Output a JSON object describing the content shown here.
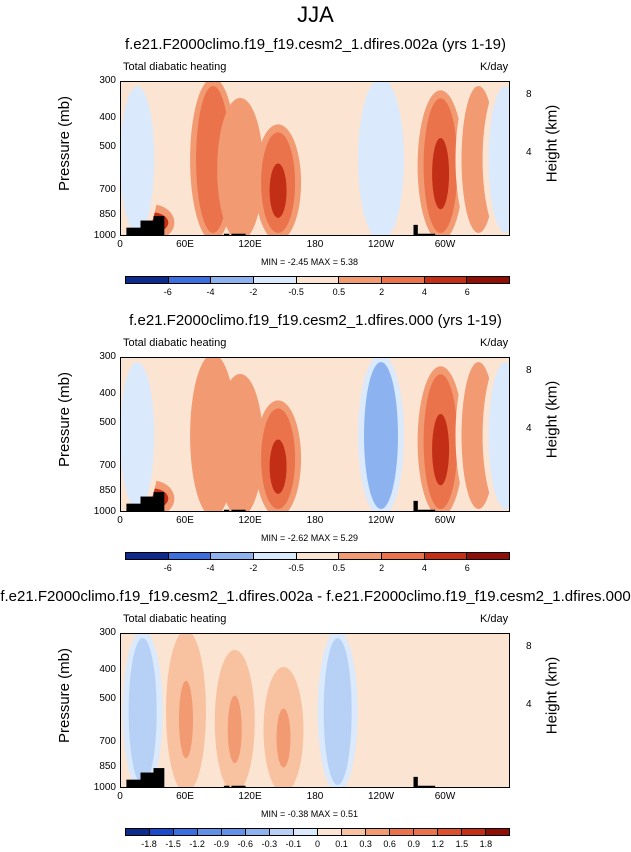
{
  "page": {
    "title": "JJA"
  },
  "palette": {
    "neg": [
      "#0b2c8c",
      "#1a49c9",
      "#3b6fe0",
      "#6092ea",
      "#8cb3f0",
      "#b7d1f6",
      "#dae9fb"
    ],
    "pos": [
      "#fbe4d2",
      "#f8c2a0",
      "#f29a71",
      "#ea734b",
      "#dc4f2b",
      "#c32f16",
      "#8f0f06"
    ],
    "terrain": "#000000"
  },
  "panels": [
    {
      "title": "f.e21.F2000climo.f19_f19.cesm2_1.dfires.002a (yrs 1-19)",
      "left_label": "Total diabatic heating",
      "right_label": "K/day",
      "ylabel": "Pressure (mb)",
      "ylabel_right": "Height (km)",
      "minmax": "MIN = -2.45  MAX = 5.38",
      "colorbar_ticks": [
        "-6",
        "-4",
        "-2",
        "-0.5",
        "0.5",
        "2",
        "4",
        "6"
      ]
    },
    {
      "title": "f.e21.F2000climo.f19_f19.cesm2_1.dfires.000 (yrs 1-19)",
      "left_label": "Total diabatic heating",
      "right_label": "K/day",
      "ylabel": "Pressure (mb)",
      "ylabel_right": "Height (km)",
      "minmax": "MIN = -2.62  MAX = 5.29",
      "colorbar_ticks": [
        "-6",
        "-4",
        "-2",
        "-0.5",
        "0.5",
        "2",
        "4",
        "6"
      ]
    },
    {
      "title": "f.e21.F2000climo.f19_f19.cesm2_1.dfires.002a - f.e21.F2000climo.f19_f19.cesm2_1.dfires.000",
      "left_label": "Total diabatic heating",
      "right_label": "K/day",
      "ylabel": "Pressure (mb)",
      "ylabel_right": "Height (km)",
      "minmax": "MIN = -0.38  MAX = 0.51",
      "colorbar_ticks": [
        "-1.8",
        "-1.5",
        "-1.2",
        "-0.9",
        "-0.6",
        "-0.3",
        "-0.1",
        "0",
        "0.1",
        "0.3",
        "0.6",
        "0.9",
        "1.2",
        "1.5",
        "1.8"
      ]
    }
  ],
  "chart_data": [
    {
      "type": "heatmap",
      "title": "f.e21.F2000climo.f19_f19.cesm2_1.dfires.002a (yrs 1-19)",
      "subtitle": "Total diabatic heating",
      "units": "K/day",
      "ylabel": "Pressure (mb)",
      "ylabel_right": "Height (km)",
      "x_ticks": [
        "0",
        "60E",
        "120E",
        "180",
        "120W",
        "60W"
      ],
      "x_tick_values": [
        0,
        60,
        120,
        180,
        240,
        300
      ],
      "xlim": [
        0,
        360
      ],
      "y_ticks": [
        "300",
        "400",
        "500",
        "700",
        "850",
        "1000"
      ],
      "y_tick_values": [
        300,
        400,
        500,
        700,
        850,
        1000
      ],
      "ylim": [
        1000,
        300
      ],
      "y_scale": "log",
      "y_right_ticks": [
        "8",
        "4"
      ],
      "min": -2.45,
      "max": 5.38,
      "levels": [
        -6,
        -4,
        -2,
        -0.5,
        0.5,
        2,
        4,
        6
      ],
      "features": [
        {
          "lon": 28,
          "top": 800,
          "value": 5.0
        },
        {
          "lon": 85,
          "top": 300,
          "value": 2.5
        },
        {
          "lon": 110,
          "top": 350,
          "value": 2.0
        },
        {
          "lon": 145,
          "top": 430,
          "value": 3.5
        },
        {
          "lon": 295,
          "top": 330,
          "value": 4.0
        },
        {
          "lon": 330,
          "top": 300,
          "value": 1.0
        },
        {
          "lon": 240,
          "top": 300,
          "value": -1.8
        },
        {
          "lon": 15,
          "top": 300,
          "value": -0.8
        },
        {
          "lon": 355,
          "top": 300,
          "value": -0.8
        }
      ]
    },
    {
      "type": "heatmap",
      "title": "f.e21.F2000climo.f19_f19.cesm2_1.dfires.000 (yrs 1-19)",
      "subtitle": "Total diabatic heating",
      "units": "K/day",
      "ylabel": "Pressure (mb)",
      "ylabel_right": "Height (km)",
      "x_ticks": [
        "0",
        "60E",
        "120E",
        "180",
        "120W",
        "60W"
      ],
      "x_tick_values": [
        0,
        60,
        120,
        180,
        240,
        300
      ],
      "xlim": [
        0,
        360
      ],
      "y_ticks": [
        "300",
        "400",
        "500",
        "700",
        "850",
        "1000"
      ],
      "y_tick_values": [
        300,
        400,
        500,
        700,
        850,
        1000
      ],
      "ylim": [
        1000,
        300
      ],
      "y_scale": "log",
      "y_right_ticks": [
        "8",
        "4"
      ],
      "min": -2.62,
      "max": 5.29,
      "levels": [
        -6,
        -4,
        -2,
        -0.5,
        0.5,
        2,
        4,
        6
      ],
      "features": [
        {
          "lon": 28,
          "top": 800,
          "value": 4.5
        },
        {
          "lon": 85,
          "top": 300,
          "value": 2.0
        },
        {
          "lon": 110,
          "top": 350,
          "value": 2.0
        },
        {
          "lon": 145,
          "top": 430,
          "value": 3.5
        },
        {
          "lon": 295,
          "top": 330,
          "value": 4.0
        },
        {
          "lon": 330,
          "top": 300,
          "value": 1.0
        },
        {
          "lon": 240,
          "top": 300,
          "value": -2.0
        },
        {
          "lon": 15,
          "top": 300,
          "value": -0.8
        },
        {
          "lon": 355,
          "top": 300,
          "value": -0.8
        }
      ]
    },
    {
      "type": "heatmap",
      "title": "f.e21.F2000climo.f19_f19.cesm2_1.dfires.002a - f.e21.F2000climo.f19_f19.cesm2_1.dfires.000",
      "subtitle": "Total diabatic heating",
      "units": "K/day",
      "ylabel": "Pressure (mb)",
      "ylabel_right": "Height (km)",
      "x_ticks": [
        "0",
        "60E",
        "120E",
        "180",
        "120W",
        "60W"
      ],
      "x_tick_values": [
        0,
        60,
        120,
        180,
        240,
        300
      ],
      "xlim": [
        0,
        360
      ],
      "y_ticks": [
        "300",
        "400",
        "500",
        "700",
        "850",
        "1000"
      ],
      "y_tick_values": [
        300,
        400,
        500,
        700,
        850,
        1000
      ],
      "ylim": [
        1000,
        300
      ],
      "y_scale": "log",
      "y_right_ticks": [
        "8",
        "4"
      ],
      "min": -0.38,
      "max": 0.51,
      "levels": [
        -1.8,
        -1.5,
        -1.2,
        -0.9,
        -0.6,
        -0.3,
        -0.1,
        0,
        0.1,
        0.3,
        0.6,
        0.9,
        1.2,
        1.5,
        1.8
      ],
      "features": [
        {
          "lon": 60,
          "top": 300,
          "value": 0.3
        },
        {
          "lon": 105,
          "top": 350,
          "value": 0.3
        },
        {
          "lon": 150,
          "top": 400,
          "value": 0.3
        },
        {
          "lon": 20,
          "top": 300,
          "value": -0.1
        },
        {
          "lon": 200,
          "top": 300,
          "value": -0.1
        },
        {
          "lon": 320,
          "top": 450,
          "value": 0.1
        }
      ]
    }
  ]
}
